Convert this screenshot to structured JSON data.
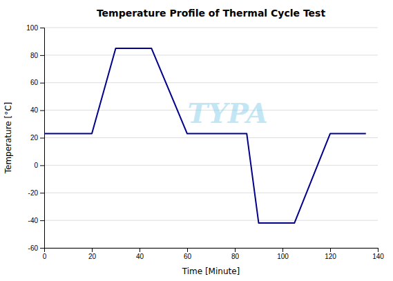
{
  "chart_data": {
    "type": "line",
    "title": "Temperature Profile of Thermal Cycle Test",
    "xlabel": "Time [Minute]",
    "ylabel": "Temperature [°C]",
    "x": [
      0,
      20,
      30,
      45,
      60,
      85,
      90,
      105,
      120,
      135
    ],
    "values": [
      23,
      23,
      85,
      85,
      23,
      23,
      -42,
      -42,
      23,
      23
    ],
    "color": "#00008B",
    "xlim": [
      0,
      140
    ],
    "ylim": [
      -60,
      100
    ],
    "xticks": [
      0,
      20,
      40,
      60,
      80,
      100,
      120,
      140
    ],
    "yticks": [
      -60,
      -40,
      -20,
      0,
      20,
      40,
      60,
      80,
      100
    ],
    "grid": "y",
    "annotations": [
      "TYPA"
    ]
  }
}
